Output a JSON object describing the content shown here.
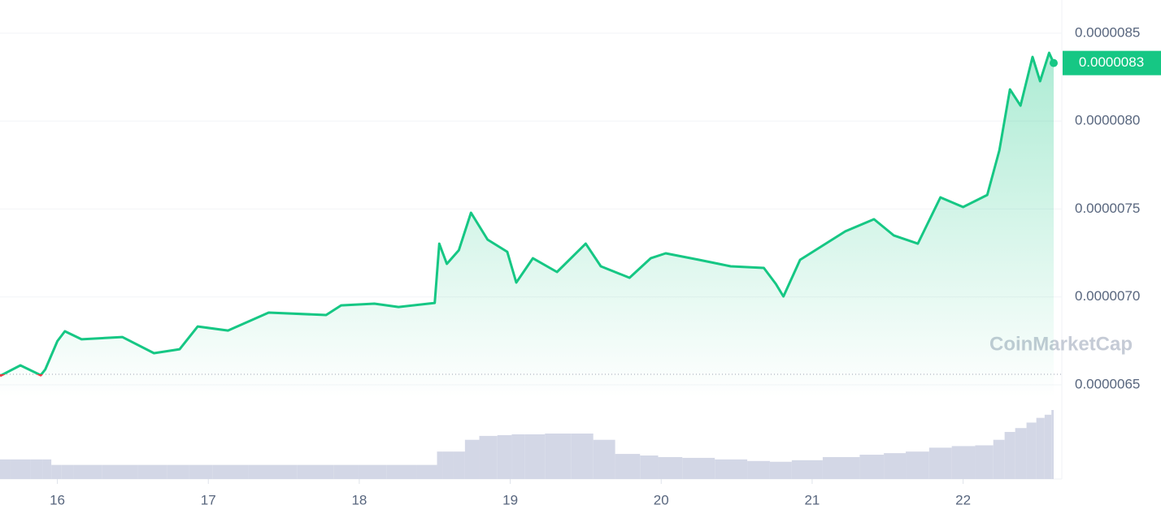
{
  "chart_data": {
    "type": "line",
    "watermark": "CoinMarketCap",
    "x": [
      15.62,
      15.755,
      15.89,
      15.92,
      16.0,
      16.05,
      16.16,
      16.43,
      16.64,
      16.81,
      16.93,
      17.13,
      17.4,
      17.78,
      17.88,
      18.1,
      18.26,
      18.5,
      18.53,
      18.58,
      18.66,
      18.74,
      18.85,
      18.98,
      19.04,
      19.15,
      19.31,
      19.5,
      19.6,
      19.79,
      19.93,
      20.03,
      20.25,
      20.46,
      20.68,
      20.76,
      20.81,
      20.92,
      21.22,
      21.41,
      21.54,
      21.7,
      21.85,
      22.0,
      22.16,
      22.24,
      22.31,
      22.38,
      22.46,
      22.51,
      22.57,
      22.6
    ],
    "values": [
      6.551e-06,
      6.611e-06,
      6.555e-06,
      6.588e-06,
      6.749e-06,
      6.805e-06,
      6.759e-06,
      6.772e-06,
      6.68e-06,
      6.703e-06,
      6.832e-06,
      6.809e-06,
      6.911e-06,
      6.897e-06,
      6.952e-06,
      6.962e-06,
      6.943e-06,
      6.966e-06,
      7.303e-06,
      7.188e-06,
      7.266e-06,
      7.479e-06,
      7.326e-06,
      7.257e-06,
      7.082e-06,
      7.22e-06,
      7.142e-06,
      7.303e-06,
      7.174e-06,
      7.109e-06,
      7.22e-06,
      7.248e-06,
      7.211e-06,
      7.174e-06,
      7.165e-06,
      7.073e-06,
      7.003e-06,
      7.211e-06,
      7.373e-06,
      7.442e-06,
      7.35e-06,
      7.303e-06,
      7.566e-06,
      7.511e-06,
      7.58e-06,
      7.834e-06,
      8.18e-06,
      8.088e-06,
      8.365e-06,
      8.227e-06,
      8.388e-06,
      8.33e-06
    ],
    "volume": [
      25,
      25,
      25,
      25,
      18,
      18,
      18,
      18,
      18,
      18,
      18,
      18,
      18,
      18,
      18,
      18,
      18,
      18,
      35,
      35,
      35,
      50,
      55,
      56,
      57,
      57,
      58,
      58,
      50,
      32,
      30,
      28,
      27,
      25,
      23,
      22,
      22,
      24,
      28,
      31,
      33,
      35,
      40,
      42,
      43,
      50,
      60,
      65,
      72,
      78,
      82,
      88
    ],
    "color": "#16c784",
    "down_color": "#ea3943",
    "volume_color": "#d3d7e6",
    "baseline": 6.56e-06,
    "current_price": {
      "value": 8.33e-06,
      "label": "0.0000083"
    },
    "xlim": [
      15.62,
      22.6
    ],
    "xticks": [
      16,
      17,
      18,
      19,
      20,
      21,
      22
    ],
    "ylim": [
      6.4e-06,
      8.7e-06
    ],
    "yticks": [
      {
        "value": 6.5e-06,
        "label": "0.0000065"
      },
      {
        "value": 7e-06,
        "label": "0.0000070"
      },
      {
        "value": 7.5e-06,
        "label": "0.0000075"
      },
      {
        "value": 8e-06,
        "label": "0.0000080"
      },
      {
        "value": 8.5e-06,
        "label": "0.0000085"
      }
    ],
    "grid": true
  }
}
